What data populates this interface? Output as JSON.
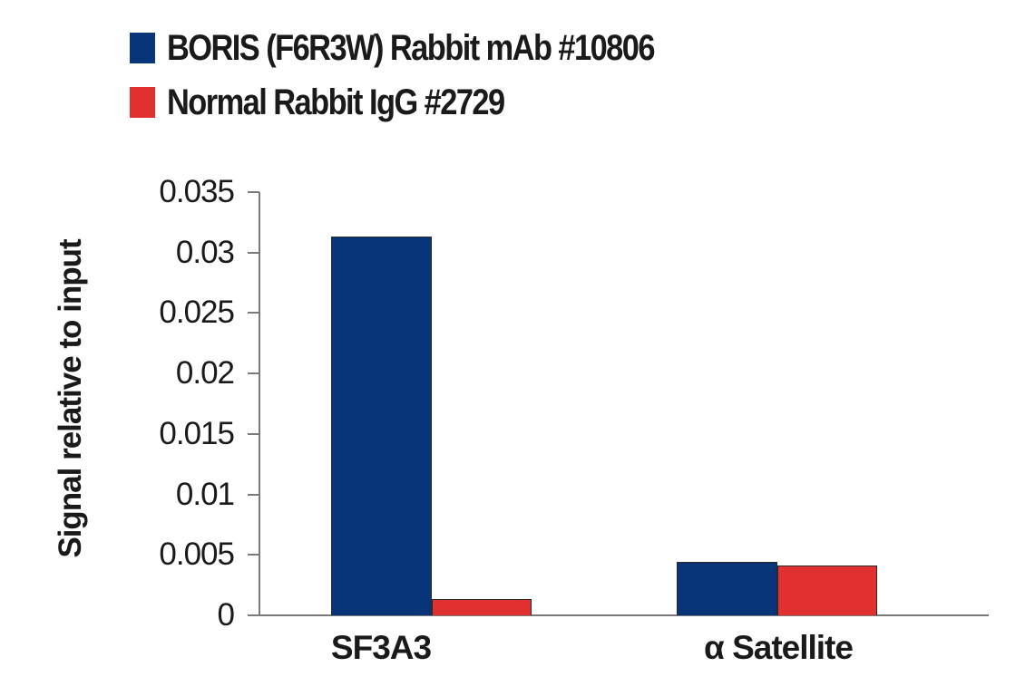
{
  "chart_data": {
    "type": "bar",
    "title": "",
    "xlabel": "",
    "ylabel": "Signal relative to input",
    "categories": [
      "SF3A3",
      "α Satellite"
    ],
    "series": [
      {
        "name": "BORIS (F6R3W) Rabbit mAb #10806",
        "color": "#08357a",
        "values": [
          0.0313,
          0.0044
        ]
      },
      {
        "name": "Normal Rabbit IgG #2729",
        "color": "#e03030",
        "values": [
          0.00135,
          0.0041
        ]
      }
    ],
    "ylim": [
      0,
      0.035
    ],
    "yticks": [
      "0",
      "0.005",
      "0.01",
      "0.015",
      "0.02",
      "0.025",
      "0.03",
      "0.035"
    ],
    "grid": false,
    "legend_position": "top-left"
  },
  "legend": {
    "items": [
      {
        "label": "BORIS (F6R3W) Rabbit mAb #10806",
        "color": "#08357a"
      },
      {
        "label": "Normal Rabbit IgG #2729",
        "color": "#e03030"
      }
    ]
  },
  "axes": {
    "ylabel": "Signal relative to input",
    "yticks": [
      "0",
      "0.005",
      "0.01",
      "0.015",
      "0.02",
      "0.025",
      "0.03",
      "0.035"
    ],
    "xticks": [
      "SF3A3",
      "α Satellite"
    ]
  }
}
